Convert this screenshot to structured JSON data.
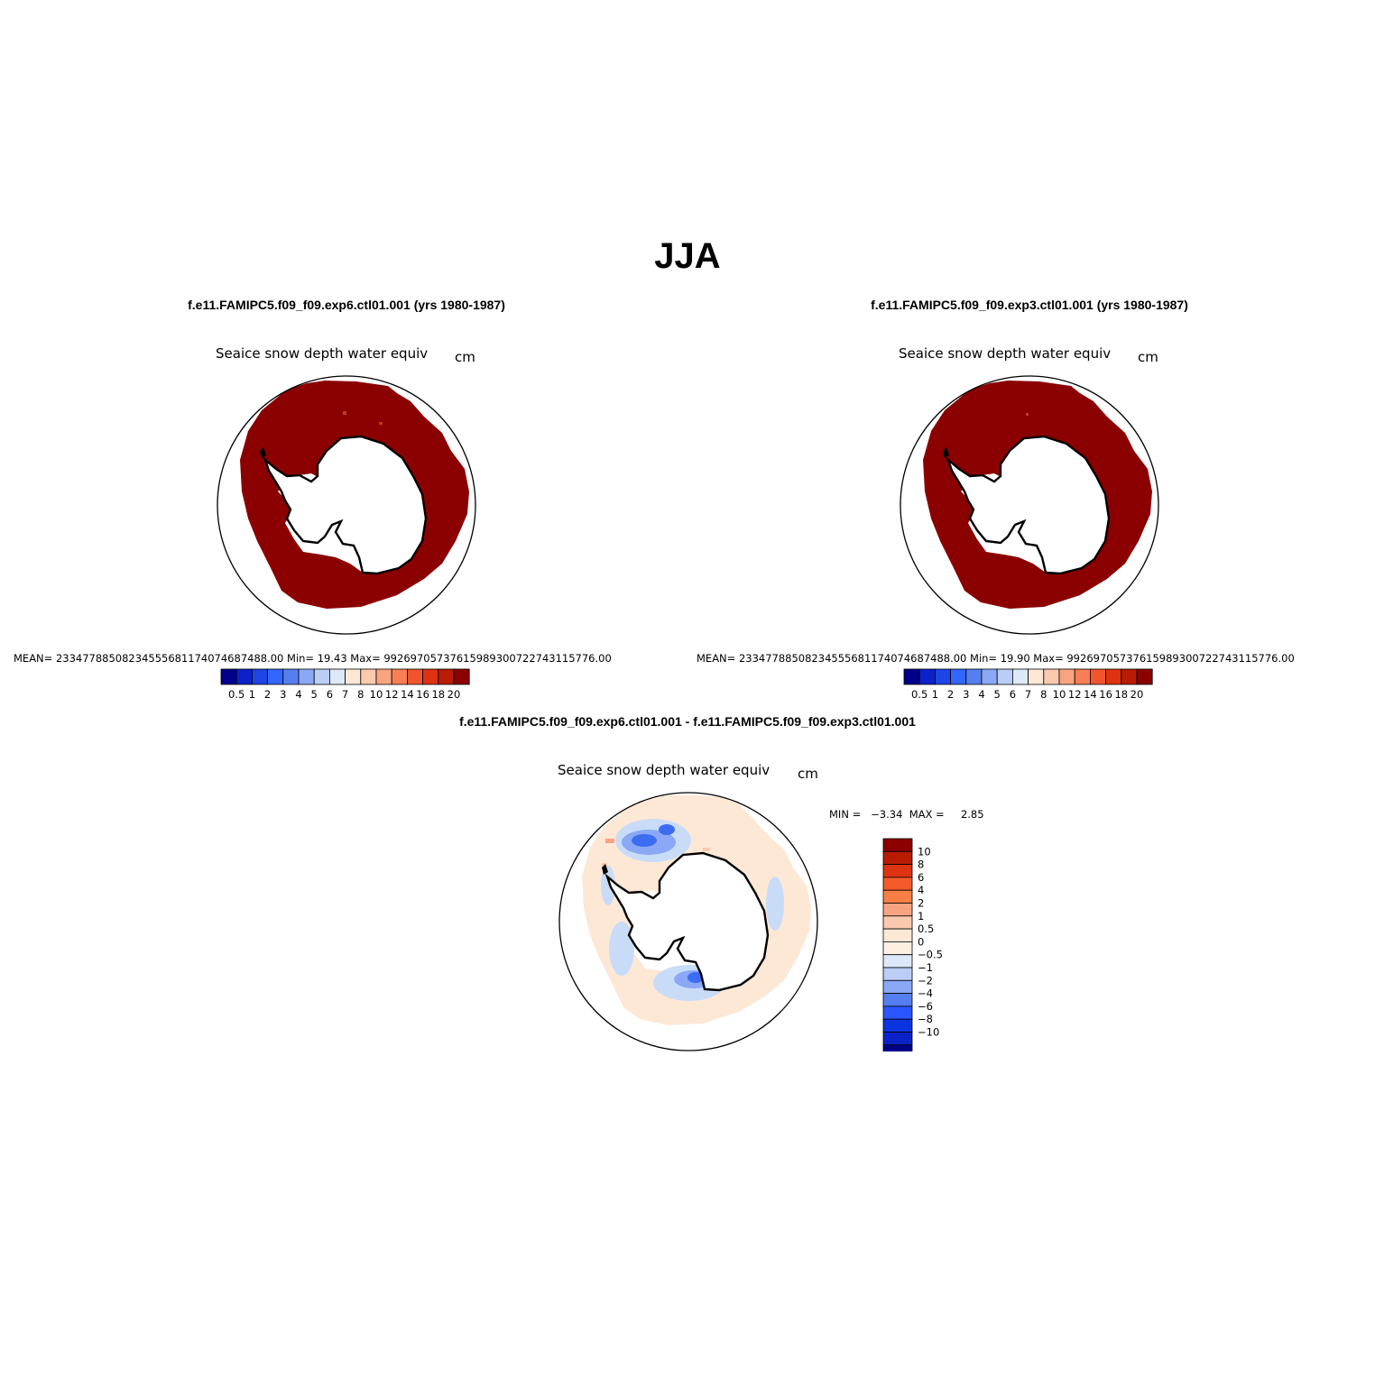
{
  "figure": {
    "title": "JJA",
    "colors": {
      "ice_top": "#8b0000",
      "ice_top_spot": "#c33c10",
      "diff_bg": "#fde8d6",
      "diff_blue": "#3c6cf0",
      "diff_lightblue": "#c8dcf8",
      "land": "#ffffff",
      "coast": "#000000"
    }
  },
  "panels": [
    {
      "case": "f.e11.FAMIPC5.f09_f09.exp6.ctl01.001 (yrs 1980-1987)",
      "variable": "Seaice snow depth water equiv",
      "units": "cm",
      "stats": "MEAN= 23347788508234555681174074687488.00   Min=   19.43   Max=  99269705737615989300722743115776.00"
    },
    {
      "case": "f.e11.FAMIPC5.f09_f09.exp3.ctl01.001 (yrs 1980-1987)",
      "variable": "Seaice snow depth water equiv",
      "units": "cm",
      "stats": "MEAN= 23347788508234555681174074687488.00   Min=   19.90   Max=  99269705737615989300722743115776.00"
    }
  ],
  "horizontal_colorbar": {
    "colors": [
      "#00008b",
      "#0c22c8",
      "#1e44e6",
      "#3366ff",
      "#557ff0",
      "#8aa8f5",
      "#b9cdf6",
      "#dde8f8",
      "#fde8d6",
      "#fbc9ae",
      "#f9a480",
      "#f77e55",
      "#f0552d",
      "#de3312",
      "#b91c05",
      "#8b0000"
    ],
    "labels": [
      "0.5",
      "1",
      "2",
      "3",
      "4",
      "5",
      "6",
      "7",
      "8",
      "10",
      "12",
      "14",
      "16",
      "18",
      "20"
    ]
  },
  "difference_panel": {
    "case": "f.e11.FAMIPC5.f09_f09.exp6.ctl01.001 - f.e11.FAMIPC5.f09_f09.exp3.ctl01.001",
    "variable": "Seaice snow depth water equiv",
    "units": "cm",
    "minmax": "MIN =   −3.34  MAX =     2.85"
  },
  "vertical_colorbar": {
    "colors_top_to_bottom": [
      "#8b0000",
      "#b91c05",
      "#de3312",
      "#f55a2a",
      "#f77e45",
      "#f9a480",
      "#fbc9ae",
      "#fde8d6",
      "#fdf0e2",
      "#dde8f8",
      "#b9cdf6",
      "#8aa8f5",
      "#557ff0",
      "#2a55ff",
      "#0c33e0",
      "#0c22c8",
      "#00008b"
    ],
    "labels_top_to_bottom": [
      "10",
      "8",
      "6",
      "4",
      "2",
      "1",
      "0.5",
      "0",
      "−0.5",
      "−1",
      "−2",
      "−4",
      "−6",
      "−8",
      "−10"
    ]
  }
}
